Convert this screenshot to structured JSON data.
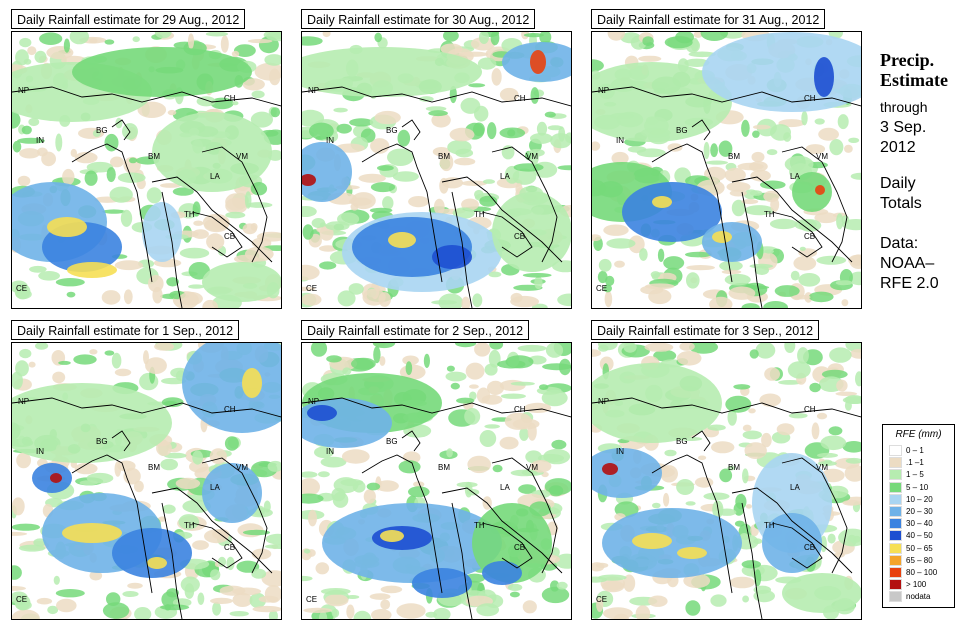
{
  "panels": [
    {
      "title": "Daily Rainfall estimate for  29 Aug., 2012"
    },
    {
      "title": "Daily Rainfall estimate for  30 Aug., 2012"
    },
    {
      "title": "Daily Rainfall estimate for  31 Aug., 2012"
    },
    {
      "title": "Daily Rainfall estimate for  1 Sep., 2012"
    },
    {
      "title": "Daily Rainfall estimate for  2 Sep., 2012"
    },
    {
      "title": "Daily Rainfall estimate for  3 Sep., 2012"
    }
  ],
  "country_labels": {
    "NP": "NP",
    "IN": "IN",
    "BG": "BG",
    "CH": "CH",
    "BM": "BM",
    "VM": "VM",
    "LA": "LA",
    "TH": "TH",
    "CB": "CB",
    "CE": "CE"
  },
  "sidebar": {
    "line1": "Precip.",
    "line2": "Estimate",
    "line3": "through",
    "line4": "3 Sep.",
    "line5": "2012",
    "line6": "Daily",
    "line7": "Totals",
    "line8": "Data:",
    "line9": "NOAA–",
    "line10": "RFE 2.0"
  },
  "legend": {
    "title": "RFE (mm)",
    "items": [
      {
        "label": "0 – 1",
        "color": "#ffffff"
      },
      {
        "label": ".1 –1",
        "color": "#ecdcc3"
      },
      {
        "label": "1 – 5",
        "color": "#b6ecb0"
      },
      {
        "label": "5 – 10",
        "color": "#76d97a"
      },
      {
        "label": "10 – 20",
        "color": "#a9d5f2"
      },
      {
        "label": "20 – 30",
        "color": "#6fb2e8"
      },
      {
        "label": "30 – 40",
        "color": "#3b83e0"
      },
      {
        "label": "40 – 50",
        "color": "#1d4fd1"
      },
      {
        "label": "50 – 65",
        "color": "#f6df54"
      },
      {
        "label": "65 – 80",
        "color": "#f4a42a"
      },
      {
        "label": "80 – 100",
        "color": "#e8420f"
      },
      {
        "label": "> 100",
        "color": "#b31010"
      },
      {
        "label": "nodata",
        "color": "#c8c8c8"
      }
    ]
  }
}
